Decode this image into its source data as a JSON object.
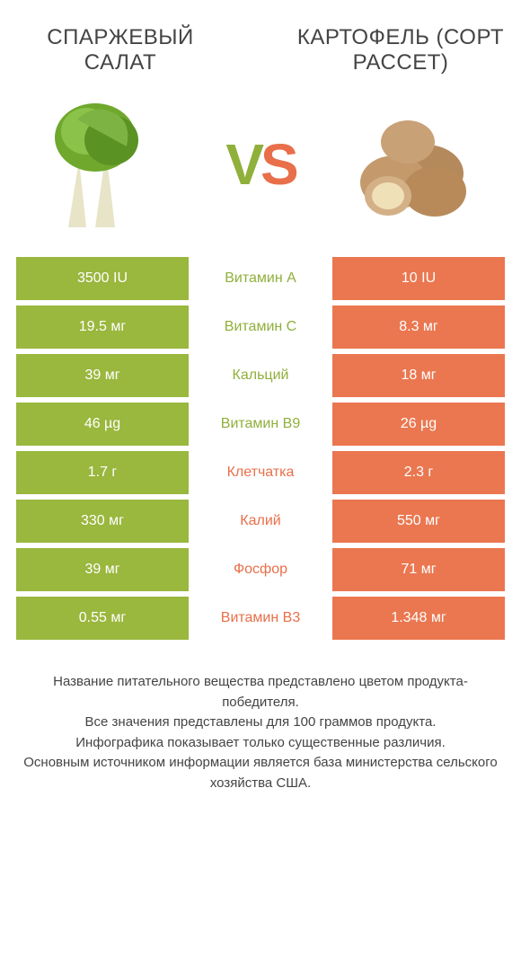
{
  "header": {
    "left_title": "СПАРЖЕВЫЙ САЛАТ",
    "right_title": "КАРТОФЕЛЬ (СОРТ РАССЕТ)",
    "vs_v": "V",
    "vs_s": "S"
  },
  "colors": {
    "left": "#9ab73e",
    "right": "#ea7750",
    "mid_green": "#8fb03a",
    "mid_orange": "#e86f4a",
    "text": "#444444",
    "background": "#ffffff"
  },
  "rows": [
    {
      "left": "3500 IU",
      "label": "Витамин A",
      "winner": "left",
      "right": "10 IU"
    },
    {
      "left": "19.5 мг",
      "label": "Витамин C",
      "winner": "left",
      "right": "8.3 мг"
    },
    {
      "left": "39 мг",
      "label": "Кальций",
      "winner": "left",
      "right": "18 мг"
    },
    {
      "left": "46 µg",
      "label": "Витамин B9",
      "winner": "left",
      "right": "26 µg"
    },
    {
      "left": "1.7 г",
      "label": "Клетчатка",
      "winner": "right",
      "right": "2.3 г"
    },
    {
      "left": "330 мг",
      "label": "Калий",
      "winner": "right",
      "right": "550 мг"
    },
    {
      "left": "39 мг",
      "label": "Фосфор",
      "winner": "right",
      "right": "71 мг"
    },
    {
      "left": "0.55 мг",
      "label": "Витамин B3",
      "winner": "right",
      "right": "1.348 мг"
    }
  ],
  "footer": {
    "line1": "Название питательного вещества представлено цветом продукта-победителя.",
    "line2": "Все значения представлены для 100 граммов продукта.",
    "line3": "Инфографика показывает только существенные различия.",
    "line4": "Основным источником информации является база министерства сельского хозяйства США."
  }
}
